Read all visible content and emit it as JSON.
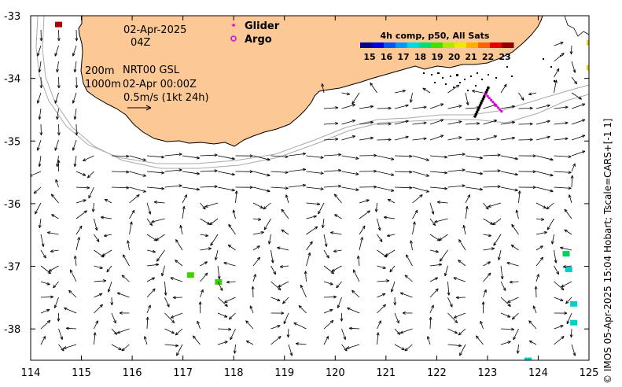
{
  "map": {
    "date_line": "02-Apr-2025",
    "hour_line": "04Z",
    "depth_line_1": "200m",
    "depth_line_2": "1000m",
    "product_line": "NRT00 GSL",
    "product_time": "02-Apr 00:00Z",
    "scale_label": "0.5m/s (1kt 24h)",
    "legend": [
      {
        "symbol": "dot",
        "label": "Glider",
        "color": "#e000e0"
      },
      {
        "symbol": "circle",
        "label": "Argo",
        "color": "#e000e0"
      }
    ],
    "credit": "© IMOS 05-Apr-2025 15:04 Hobart; Tscale=CARS+[-1 1]",
    "colors": {
      "land": "#fcc896",
      "coast": "#000000",
      "isobath": "#aaaaaa"
    }
  },
  "colorbar": {
    "title": "4h comp, p50, All Sats",
    "tick_labels": [
      "15",
      "16",
      "17",
      "18",
      "19",
      "20",
      "21",
      "22",
      "23"
    ],
    "colors": [
      "#00008c",
      "#0000e6",
      "#0055ff",
      "#0099ff",
      "#00d8e6",
      "#00e070",
      "#40e000",
      "#b0e800",
      "#f0e800",
      "#ffb000",
      "#ff6000",
      "#e60000",
      "#8c0000"
    ]
  },
  "axes": {
    "x_ticks": [
      114,
      115,
      116,
      117,
      118,
      119,
      120,
      121,
      122,
      123,
      124,
      125
    ],
    "y_ticks": [
      -33,
      -34,
      -35,
      -36,
      -37,
      -38
    ],
    "x_range": [
      114,
      125
    ],
    "y_range": [
      -38.5,
      -33
    ]
  },
  "sst_patches": [
    {
      "lon": 114.55,
      "lat": -33.14,
      "color": "#b00000"
    },
    {
      "lon": 125.0,
      "lat": -33.43,
      "color": "#f0d000"
    },
    {
      "lon": 125.0,
      "lat": -33.83,
      "color": "#f0d000"
    },
    {
      "lon": 117.7,
      "lat": -37.25,
      "color": "#40d000"
    },
    {
      "lon": 117.15,
      "lat": -37.14,
      "color": "#40d000"
    },
    {
      "lon": 124.55,
      "lat": -36.8,
      "color": "#00d060"
    },
    {
      "lon": 124.6,
      "lat": -37.05,
      "color": "#00d0c8"
    },
    {
      "lon": 124.7,
      "lat": -37.6,
      "color": "#00d0c8"
    },
    {
      "lon": 124.7,
      "lat": -37.9,
      "color": "#00d0c8"
    },
    {
      "lon": 123.8,
      "lat": -38.5,
      "color": "#00d0c8"
    }
  ]
}
